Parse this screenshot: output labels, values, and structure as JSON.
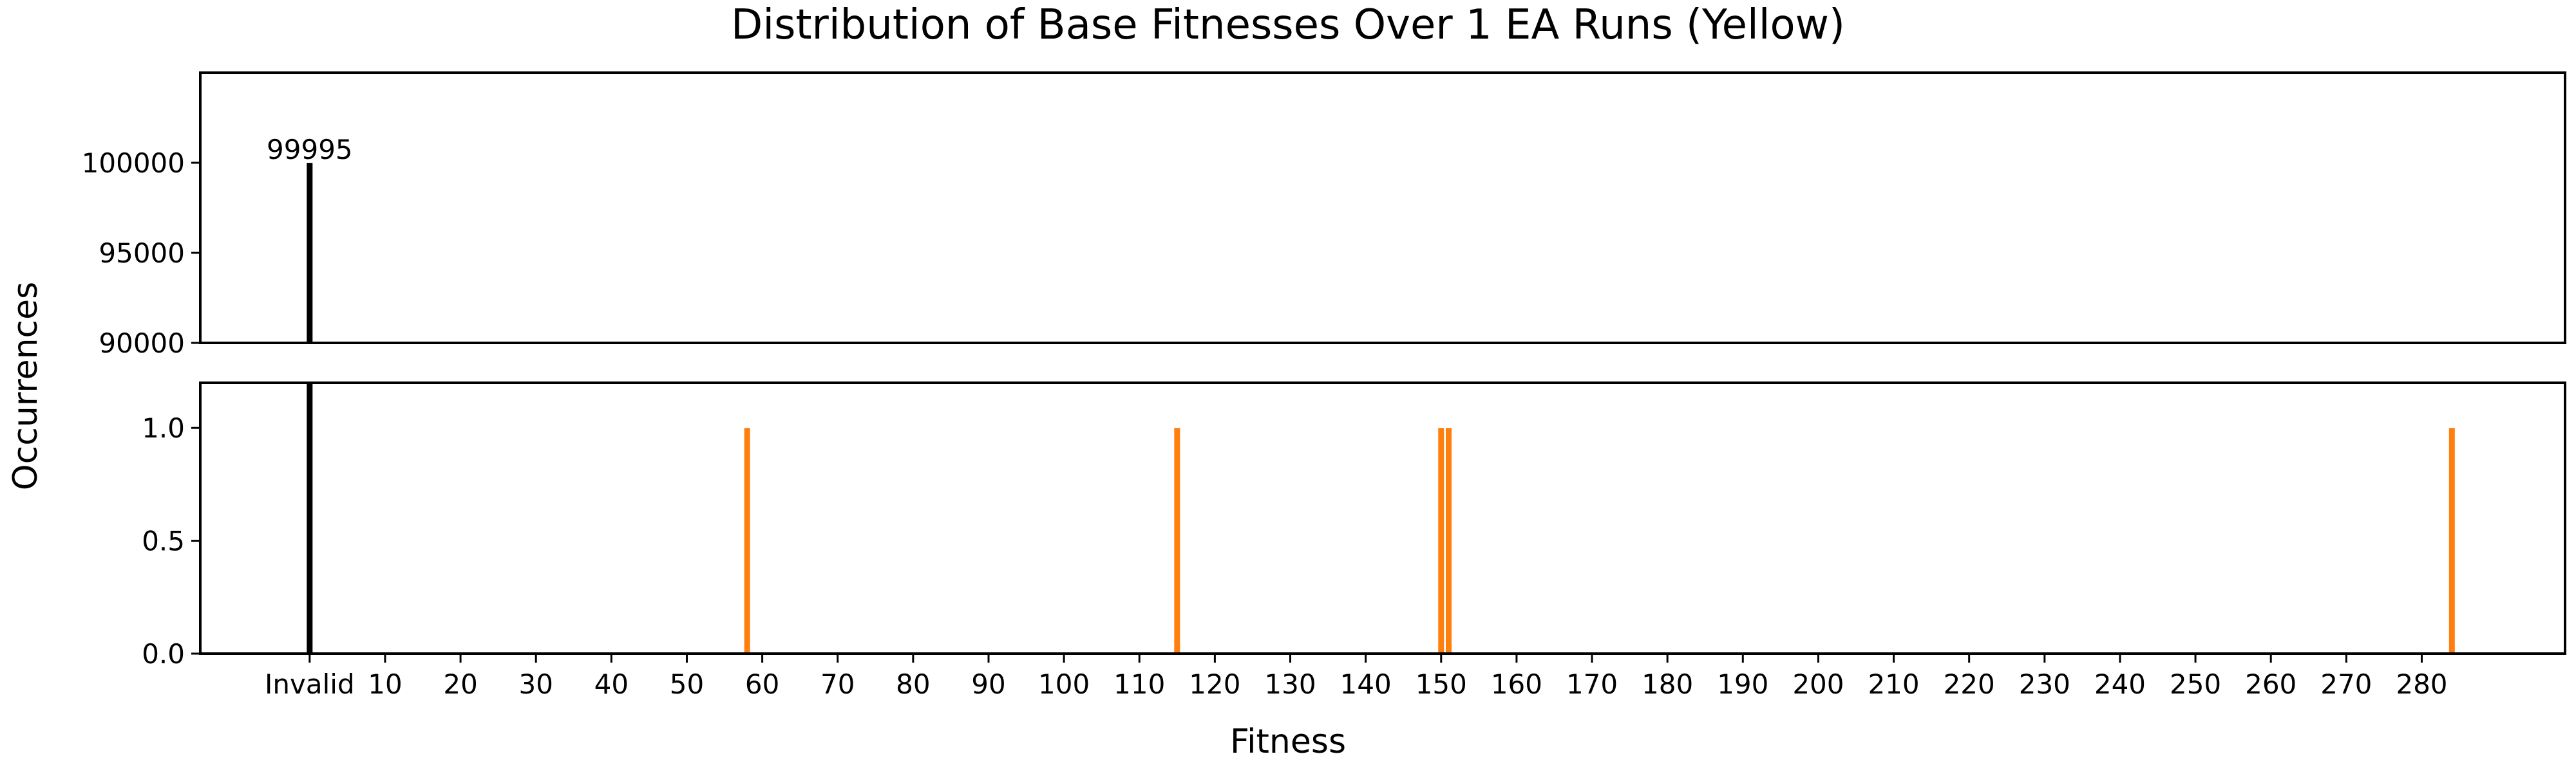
{
  "chart_data": {
    "type": "bar",
    "title": "Distribution of Base Fitnesses Over 1 EA Runs (Yellow)",
    "xlabel": "Fitness",
    "ylabel": "Occurrences",
    "grid": false,
    "broken_y_axis": true,
    "xlim": [
      -14.5,
      299
    ],
    "x_tick_labels": [
      "Invalid",
      "10",
      "20",
      "30",
      "40",
      "50",
      "60",
      "70",
      "80",
      "90",
      "100",
      "110",
      "120",
      "130",
      "140",
      "150",
      "160",
      "170",
      "180",
      "190",
      "200",
      "210",
      "220",
      "230",
      "240",
      "250",
      "260",
      "270",
      "280"
    ],
    "invalid_position": 0,
    "upper_panel": {
      "ylim": [
        90000,
        105000
      ],
      "y_ticks": [
        "90000",
        "95000",
        "100000"
      ]
    },
    "lower_panel": {
      "ylim": [
        0,
        1.2
      ],
      "y_ticks": [
        "0.0",
        "0.5",
        "1.0"
      ]
    },
    "series": [
      {
        "color": "#000000",
        "points": [
          {
            "x": "Invalid",
            "y": 99995,
            "label": "99995"
          }
        ]
      },
      {
        "color": "#ff7f0e",
        "points": [
          {
            "x": 58,
            "y": 1
          },
          {
            "x": 115,
            "y": 1
          },
          {
            "x": 150,
            "y": 1
          },
          {
            "x": 151,
            "y": 1
          },
          {
            "x": 284,
            "y": 1
          }
        ]
      }
    ]
  }
}
